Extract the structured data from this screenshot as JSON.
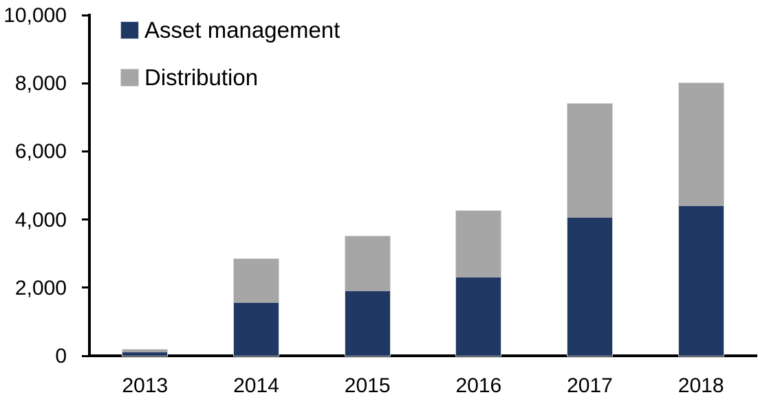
{
  "chart_data": {
    "type": "bar",
    "stacked": true,
    "title": "",
    "xlabel": "",
    "ylabel": "",
    "categories": [
      "2013",
      "2014",
      "2015",
      "2016",
      "2017",
      "2018"
    ],
    "series": [
      {
        "name": "Asset management",
        "color": "#1F3864",
        "values": [
          100,
          1550,
          1900,
          2300,
          4050,
          4400
        ]
      },
      {
        "name": "Distribution",
        "color": "#A6A6A6",
        "values": [
          80,
          1300,
          1600,
          1950,
          3350,
          3600
        ]
      }
    ],
    "totals": [
      180,
      2850,
      3500,
      4250,
      7400,
      8000
    ],
    "ylim": [
      0,
      10000
    ],
    "yticks": [
      0,
      2000,
      4000,
      6000,
      8000,
      10000
    ],
    "ytick_labels": [
      "0",
      "2,000",
      "4,000",
      "6,000",
      "8,000",
      "10,000"
    ],
    "legend_position": "top-left",
    "grid": false,
    "axis_color": "#000000",
    "text_color": "#000000",
    "bar_border_color": "#D9D9D9"
  }
}
